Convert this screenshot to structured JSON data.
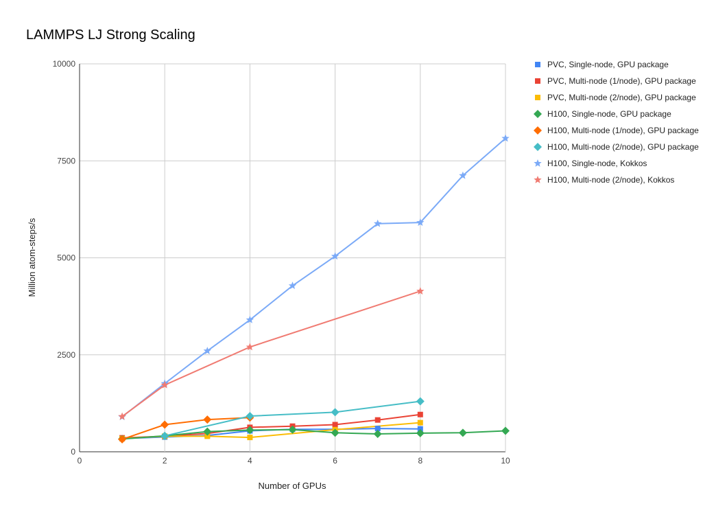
{
  "chart_data": {
    "type": "line",
    "title": "LAMMPS LJ Strong Scaling",
    "xlabel": "Number of GPUs",
    "ylabel": "Million atom-steps/s",
    "xlim": [
      0,
      10
    ],
    "ylim": [
      0,
      10000
    ],
    "xticks": [
      0,
      2,
      4,
      6,
      8,
      10
    ],
    "yticks": [
      0,
      2500,
      5000,
      7500,
      10000
    ],
    "grid": true,
    "legend_position": "right",
    "series": [
      {
        "name": "PVC, Single-node, GPU package",
        "color": "#4285f4",
        "marker": "square",
        "points": [
          [
            1,
            340
          ],
          [
            2,
            380
          ],
          [
            3,
            420
          ],
          [
            4,
            540
          ],
          [
            5,
            580
          ],
          [
            6,
            580
          ],
          [
            7,
            600
          ],
          [
            8,
            590
          ]
        ]
      },
      {
        "name": "PVC, Multi-node (1/node), GPU package",
        "color": "#ea4335",
        "marker": "square",
        "points": [
          [
            1,
            360
          ],
          [
            2,
            400
          ],
          [
            3,
            470
          ],
          [
            4,
            630
          ],
          [
            5,
            660
          ],
          [
            6,
            700
          ],
          [
            7,
            820
          ],
          [
            8,
            960
          ]
        ]
      },
      {
        "name": "PVC, Multi-node (2/node), GPU package",
        "color": "#fbbc04",
        "marker": "square",
        "points": [
          [
            1,
            340
          ],
          [
            2,
            400
          ],
          [
            3,
            400
          ],
          [
            4,
            370
          ],
          [
            6,
            570
          ],
          [
            8,
            750
          ]
        ]
      },
      {
        "name": "H100, Single-node, GPU package",
        "color": "#34a853",
        "marker": "diamond",
        "points": [
          [
            1,
            330
          ],
          [
            2,
            410
          ],
          [
            3,
            520
          ],
          [
            4,
            560
          ],
          [
            5,
            570
          ],
          [
            6,
            490
          ],
          [
            7,
            460
          ],
          [
            8,
            480
          ],
          [
            9,
            490
          ],
          [
            10,
            540
          ]
        ]
      },
      {
        "name": "H100, Multi-node (1/node), GPU package",
        "color": "#ff6d01",
        "marker": "diamond",
        "points": [
          [
            1,
            320
          ],
          [
            2,
            700
          ],
          [
            3,
            830
          ],
          [
            4,
            880
          ]
        ]
      },
      {
        "name": "H100, Multi-node (2/node), GPU package",
        "color": "#46bdc6",
        "marker": "diamond",
        "points": [
          [
            2,
            410
          ],
          [
            4,
            920
          ],
          [
            6,
            1020
          ],
          [
            8,
            1300
          ]
        ]
      },
      {
        "name": "H100, Single-node, Kokkos",
        "color": "#7baaf7",
        "marker": "star",
        "points": [
          [
            1,
            900
          ],
          [
            2,
            1760
          ],
          [
            3,
            2600
          ],
          [
            4,
            3400
          ],
          [
            5,
            4280
          ],
          [
            6,
            5040
          ],
          [
            7,
            5880
          ],
          [
            8,
            5910
          ],
          [
            9,
            7120
          ],
          [
            10,
            8080
          ]
        ]
      },
      {
        "name": "H100, Multi-node (2/node), Kokkos",
        "color": "#f07b72",
        "marker": "star",
        "points": [
          [
            1,
            910
          ],
          [
            2,
            1720
          ],
          [
            4,
            2700
          ],
          [
            8,
            4140
          ]
        ]
      }
    ]
  }
}
